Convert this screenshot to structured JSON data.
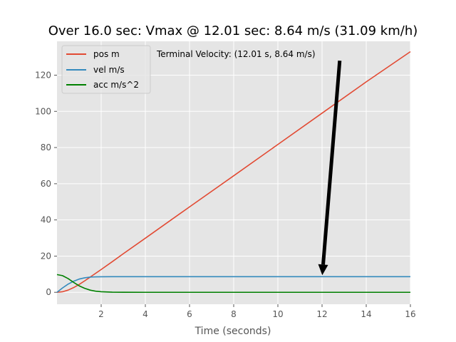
{
  "chart_data": {
    "type": "line",
    "title": "Over 16.0 sec: Vmax @ 12.01 sec: 8.64 m/s (31.09 km/h)",
    "xlabel": "Time (seconds)",
    "ylabel": "",
    "xlim": [
      0,
      16
    ],
    "ylim": [
      -6.6,
      138.7
    ],
    "xticks": [
      2,
      4,
      6,
      8,
      10,
      12,
      14,
      16
    ],
    "yticks": [
      0,
      20,
      40,
      60,
      80,
      100,
      120
    ],
    "grid": true,
    "legend_position": "top-left",
    "series": [
      {
        "name": "pos m",
        "color": "#E24A33",
        "x": [
          0,
          0.25,
          0.5,
          0.75,
          1,
          1.25,
          1.5,
          2,
          2.5,
          3,
          4,
          6,
          8,
          10,
          12,
          14,
          16
        ],
        "y": [
          0,
          0.3,
          1.2,
          2.6,
          4.3,
          6.3,
          8.4,
          12.6,
          16.9,
          21.3,
          29.9,
          47.2,
          64.4,
          81.7,
          99.0,
          116.3,
          133.0
        ]
      },
      {
        "name": "vel m/s",
        "color": "#348ABD",
        "x": [
          0,
          0.25,
          0.5,
          0.75,
          1,
          1.25,
          1.5,
          1.75,
          2,
          2.5,
          3,
          4,
          6,
          8,
          10,
          12,
          14,
          16
        ],
        "y": [
          0,
          2.4,
          4.5,
          6.1,
          7.3,
          8.0,
          8.4,
          8.55,
          8.6,
          8.63,
          8.64,
          8.64,
          8.64,
          8.64,
          8.64,
          8.64,
          8.64,
          8.64
        ]
      },
      {
        "name": "acc m/s^2",
        "color": "#008000",
        "x": [
          0,
          0.25,
          0.5,
          0.75,
          1,
          1.25,
          1.5,
          1.75,
          2,
          2.5,
          3,
          4,
          6,
          8,
          10,
          12,
          14,
          16
        ],
        "y": [
          9.8,
          9.2,
          7.6,
          5.5,
          3.6,
          2.2,
          1.2,
          0.6,
          0.3,
          0.08,
          0.02,
          0,
          0,
          0,
          0,
          0,
          0,
          0
        ]
      }
    ],
    "annotations": [
      {
        "text": "Terminal Velocity: (12.01 s, 8.64 m/s)",
        "point": {
          "x": 12.01,
          "y": 8.64
        },
        "text_anchor": {
          "x": 12.8,
          "y": 128
        }
      }
    ]
  },
  "colors": {
    "plot_background": "#E5E5E5",
    "grid": "#FFFFFF",
    "arrow": "#000000"
  }
}
